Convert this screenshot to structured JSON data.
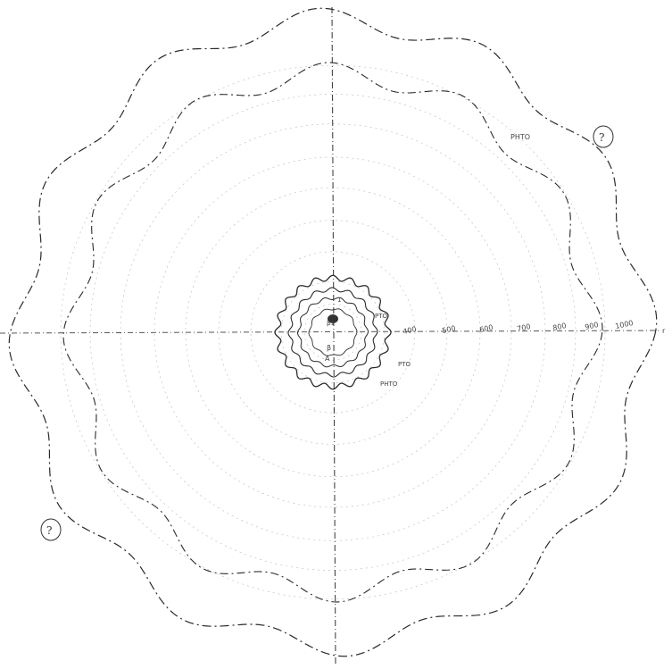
{
  "diagram": {
    "ink_color": "#2a2a2a",
    "faint_color": "#9a9a9a",
    "background": "#ffffff",
    "wavy_contours": [
      {
        "name": "outer-wavy-contour",
        "lobes": 12,
        "style": "dash-dot"
      },
      {
        "name": "second-wavy-contour",
        "lobes": 12,
        "style": "dash-dot"
      },
      {
        "name": "inner-wavy-contour",
        "lobes": 20,
        "style": "solid"
      }
    ],
    "faint_rings": 10,
    "axis_labels": {
      "right_axis_values": [
        "400",
        "500",
        "600",
        "700",
        "800",
        "900",
        "1000"
      ],
      "contour_label": "PHTO",
      "inner_label_left": "PTO",
      "inner_label_right": "PTO",
      "inner_label_bottom": "PHTO",
      "inner_label_top": "1",
      "center_glyph": "β",
      "center_glyph_2": "β1",
      "center_glyph_3": "A",
      "axis_end_right": "r",
      "marker_upper_right": "?",
      "marker_lower_left": "?"
    }
  }
}
